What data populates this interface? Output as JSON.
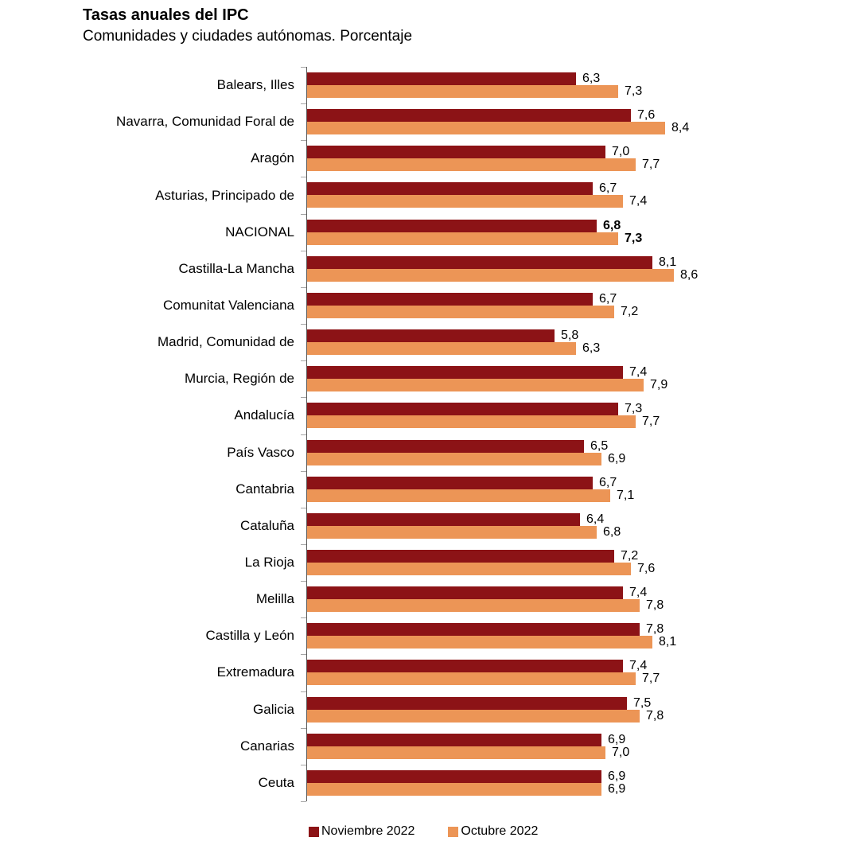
{
  "header": {
    "title": "Tasas anuales del IPC",
    "subtitle": "Comunidades y ciudades autónomas. Porcentaje"
  },
  "chart_data": {
    "type": "bar",
    "orientation": "horizontal",
    "title": "Tasas anuales del IPC",
    "subtitle": "Comunidades y ciudades autónomas. Porcentaje",
    "value_unit": "percent",
    "decimal_separator": ",",
    "xlim": [
      0,
      9
    ],
    "grid": false,
    "legend_position": "bottom",
    "emphasis_category": "NACIONAL",
    "categories": [
      "Balears, Illes",
      "Navarra, Comunidad Foral de",
      "Aragón",
      "Asturias, Principado de",
      "NACIONAL",
      "Castilla-La Mancha",
      "Comunitat Valenciana",
      "Madrid, Comunidad de",
      "Murcia, Región de",
      "Andalucía",
      "País Vasco",
      "Cantabria",
      "Cataluña",
      "La Rioja",
      "Melilla",
      "Castilla y León",
      "Extremadura",
      "Galicia",
      "Canarias",
      "Ceuta"
    ],
    "series": [
      {
        "name": "Noviembre 2022",
        "color": "#8c1316",
        "values": [
          6.3,
          7.6,
          7.0,
          6.7,
          6.8,
          8.1,
          6.7,
          5.8,
          7.4,
          7.3,
          6.5,
          6.7,
          6.4,
          7.2,
          7.4,
          7.8,
          7.4,
          7.5,
          6.9,
          6.9
        ],
        "labels": [
          "6,3",
          "7,6",
          "7,0",
          "6,7",
          "6,8",
          "8,1",
          "6,7",
          "5,8",
          "7,4",
          "7,3",
          "6,5",
          "6,7",
          "6,4",
          "7,2",
          "7,4",
          "7,8",
          "7,4",
          "7,5",
          "6,9",
          "6,9"
        ]
      },
      {
        "name": "Octubre 2022",
        "color": "#ec9556",
        "values": [
          7.3,
          8.4,
          7.7,
          7.4,
          7.3,
          8.6,
          7.2,
          6.3,
          7.9,
          7.7,
          6.9,
          7.1,
          6.8,
          7.6,
          7.8,
          8.1,
          7.7,
          7.8,
          7.0,
          6.9
        ],
        "labels": [
          "7,3",
          "8,4",
          "7,7",
          "7,4",
          "7,3",
          "8,6",
          "7,2",
          "6,3",
          "7,9",
          "7,7",
          "6,9",
          "7,1",
          "6,8",
          "7,6",
          "7,8",
          "8,1",
          "7,7",
          "7,8",
          "7,0",
          "6,9"
        ]
      }
    ],
    "axis_colors": {
      "axis_line": "#595959",
      "tick": "#a6a6a6"
    }
  }
}
